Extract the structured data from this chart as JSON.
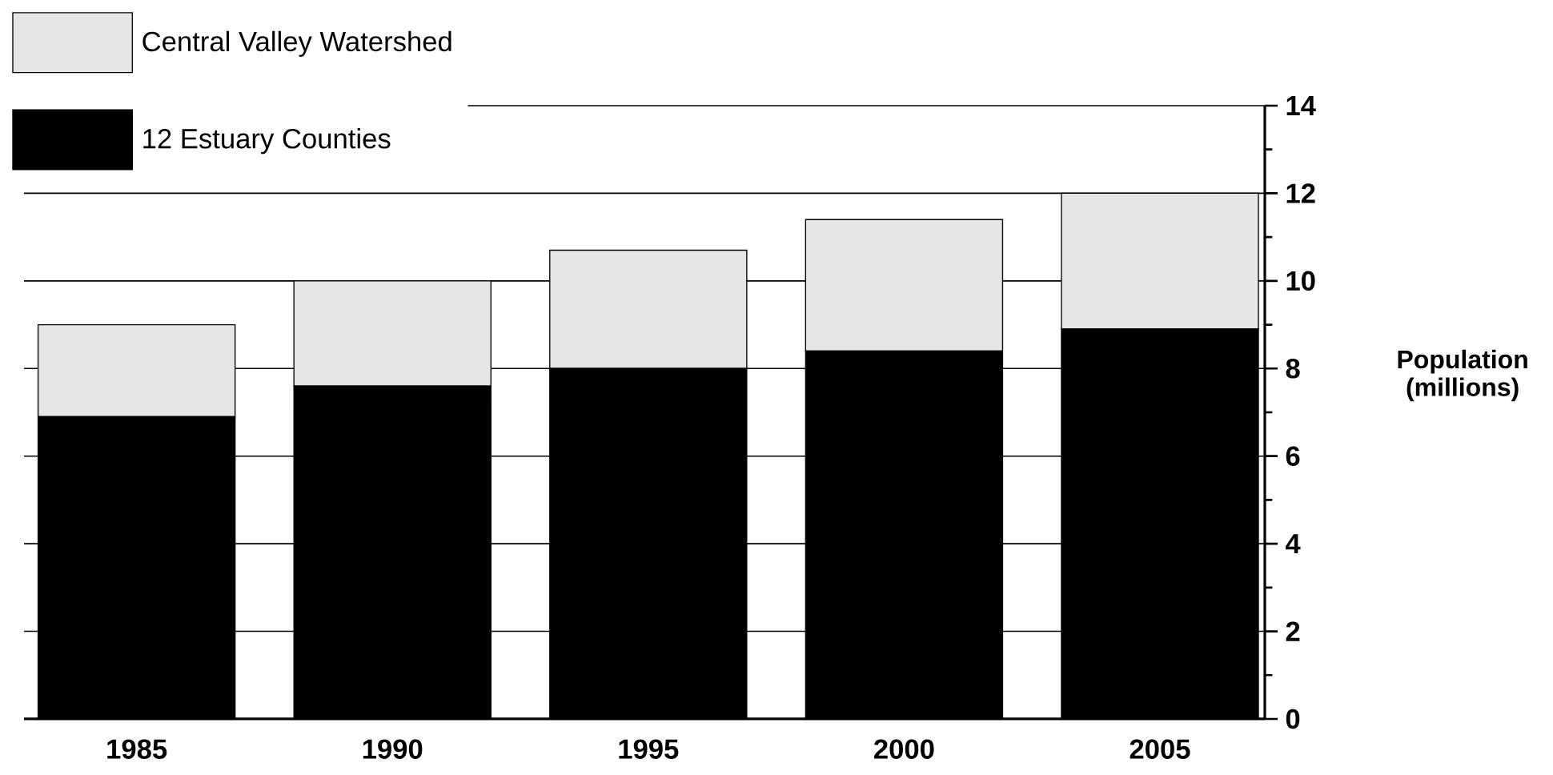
{
  "chart_data": {
    "type": "bar",
    "stacked": true,
    "categories": [
      "1985",
      "1990",
      "1995",
      "2000",
      "2005"
    ],
    "series": [
      {
        "name": "12 Estuary Counties",
        "color": "#000000",
        "values": [
          6.9,
          7.6,
          8.0,
          8.4,
          8.9
        ]
      },
      {
        "name": "Central Valley Watershed",
        "color": "#e6e6e6",
        "values": [
          2.1,
          2.4,
          2.7,
          3.0,
          3.1
        ]
      }
    ],
    "ylabel": "Population (millions)",
    "ylim": [
      0,
      14
    ],
    "yticks": [
      0,
      2,
      4,
      6,
      8,
      10,
      12,
      14
    ],
    "grid": "y",
    "legend": "top left"
  }
}
